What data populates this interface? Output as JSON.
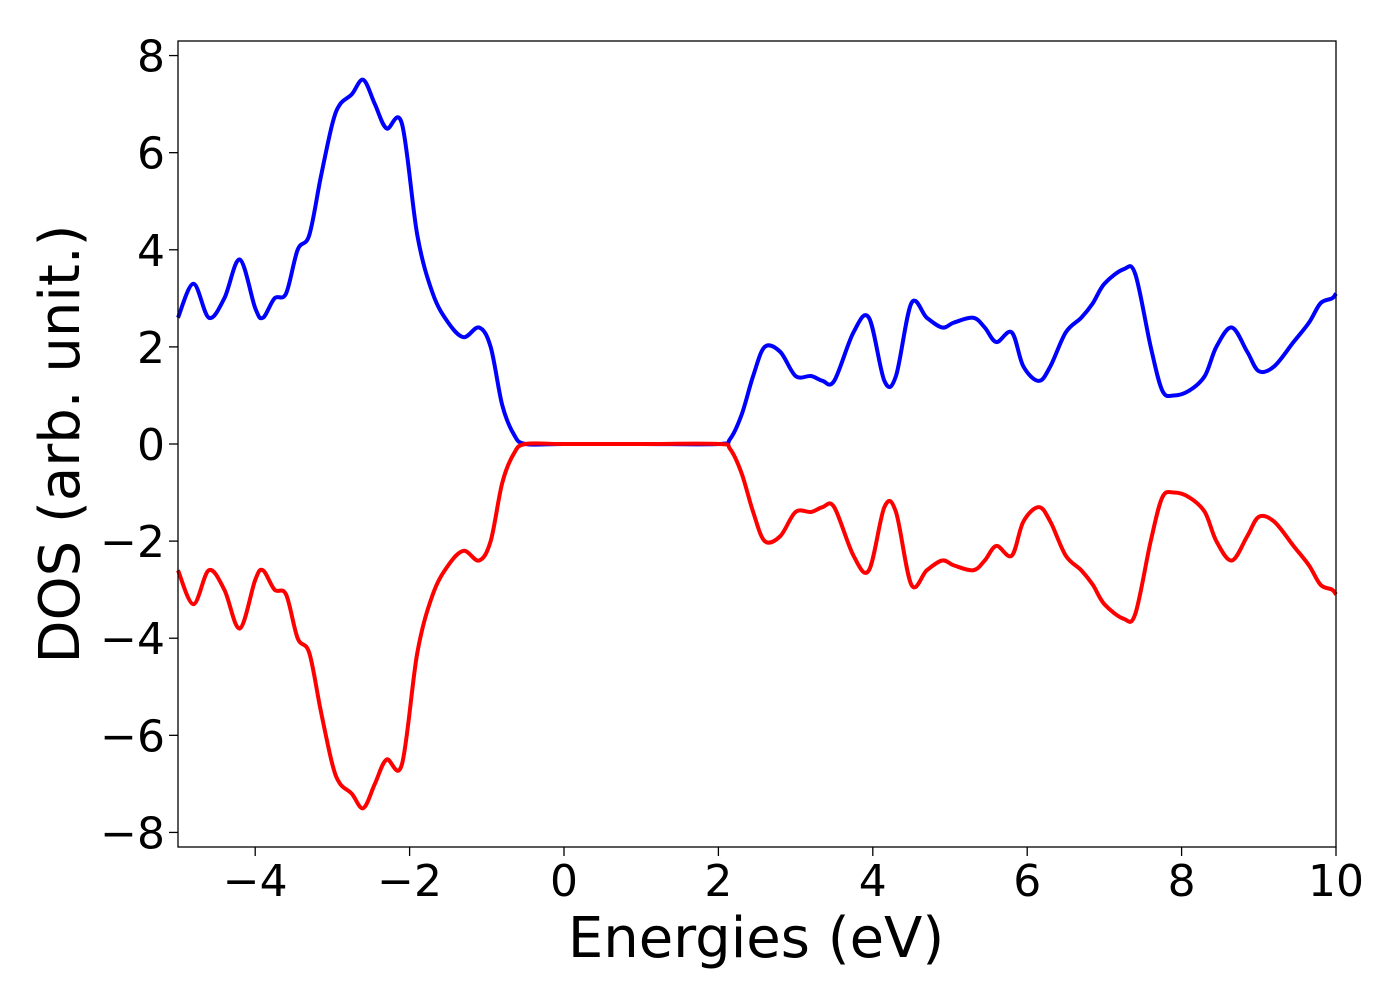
{
  "chart_data": {
    "type": "line",
    "title": "",
    "xlabel": "Energies (eV)",
    "ylabel": "DOS (arb. unit.)",
    "xlim": [
      -5,
      10
    ],
    "ylim": [
      -8.3,
      8.3
    ],
    "grid": false,
    "legend": "none",
    "x_ticks": [
      -4,
      -2,
      0,
      2,
      4,
      6,
      8,
      10
    ],
    "x_tick_labels": [
      "−4",
      "−2",
      "0",
      "2",
      "4",
      "6",
      "8",
      "10"
    ],
    "y_ticks": [
      -8,
      -6,
      -4,
      -2,
      0,
      2,
      4,
      6,
      8
    ],
    "y_tick_labels": [
      "−8",
      "−6",
      "−4",
      "−2",
      "0",
      "2",
      "4",
      "6",
      "8"
    ],
    "series": [
      {
        "color": "#0000ff",
        "x": [
          -5.0,
          -4.8,
          -4.6,
          -4.4,
          -4.2,
          -4.0,
          -3.9,
          -3.75,
          -3.6,
          -3.45,
          -3.3,
          -3.15,
          -3.0,
          -2.9,
          -2.75,
          -2.6,
          -2.45,
          -2.3,
          -2.1,
          -1.9,
          -1.7,
          -1.5,
          -1.3,
          -1.1,
          -0.95,
          -0.8,
          -0.65,
          -0.5,
          0.0,
          1.0,
          2.0,
          2.15,
          2.3,
          2.45,
          2.6,
          2.8,
          3.0,
          3.2,
          3.35,
          3.5,
          3.75,
          3.95,
          4.15,
          4.3,
          4.5,
          4.7,
          4.9,
          5.05,
          5.3,
          5.45,
          5.6,
          5.8,
          5.95,
          6.15,
          6.3,
          6.5,
          6.7,
          6.85,
          7.0,
          7.25,
          7.4,
          7.6,
          7.75,
          7.9,
          8.1,
          8.3,
          8.45,
          8.65,
          8.85,
          9.0,
          9.2,
          9.45,
          9.65,
          9.8,
          9.95,
          10.0
        ],
        "y": [
          2.6,
          3.3,
          2.6,
          3.0,
          3.8,
          2.8,
          2.6,
          3.0,
          3.1,
          4.0,
          4.3,
          5.5,
          6.6,
          7.0,
          7.2,
          7.5,
          7.0,
          6.5,
          6.6,
          4.3,
          3.1,
          2.5,
          2.2,
          2.4,
          2.0,
          0.8,
          0.2,
          0.0,
          0.0,
          0.0,
          0.0,
          0.1,
          0.6,
          1.4,
          2.0,
          1.9,
          1.4,
          1.4,
          1.3,
          1.3,
          2.3,
          2.6,
          1.3,
          1.4,
          2.9,
          2.6,
          2.4,
          2.5,
          2.6,
          2.4,
          2.1,
          2.3,
          1.6,
          1.3,
          1.6,
          2.3,
          2.6,
          2.9,
          3.3,
          3.6,
          3.5,
          2.0,
          1.1,
          1.0,
          1.1,
          1.4,
          2.0,
          2.4,
          1.9,
          1.5,
          1.6,
          2.1,
          2.5,
          2.9,
          3.0,
          3.1
        ]
      },
      {
        "color": "#ff0000",
        "x": [
          -5.0,
          -4.8,
          -4.6,
          -4.4,
          -4.2,
          -4.0,
          -3.9,
          -3.75,
          -3.6,
          -3.45,
          -3.3,
          -3.15,
          -3.0,
          -2.9,
          -2.75,
          -2.6,
          -2.45,
          -2.3,
          -2.1,
          -1.9,
          -1.7,
          -1.5,
          -1.3,
          -1.1,
          -0.95,
          -0.8,
          -0.65,
          -0.5,
          0.0,
          1.0,
          2.0,
          2.15,
          2.3,
          2.45,
          2.6,
          2.8,
          3.0,
          3.2,
          3.35,
          3.5,
          3.75,
          3.95,
          4.15,
          4.3,
          4.5,
          4.7,
          4.9,
          5.05,
          5.3,
          5.45,
          5.6,
          5.8,
          5.95,
          6.15,
          6.3,
          6.5,
          6.7,
          6.85,
          7.0,
          7.25,
          7.4,
          7.6,
          7.75,
          7.9,
          8.1,
          8.3,
          8.45,
          8.65,
          8.85,
          9.0,
          9.2,
          9.45,
          9.65,
          9.8,
          9.95,
          10.0
        ],
        "y": [
          -2.6,
          -3.3,
          -2.6,
          -3.0,
          -3.8,
          -2.8,
          -2.6,
          -3.0,
          -3.1,
          -4.0,
          -4.3,
          -5.5,
          -6.6,
          -7.0,
          -7.2,
          -7.5,
          -7.0,
          -6.5,
          -6.6,
          -4.3,
          -3.1,
          -2.5,
          -2.2,
          -2.4,
          -2.0,
          -0.8,
          -0.2,
          0.0,
          0.0,
          0.0,
          0.0,
          -0.1,
          -0.6,
          -1.4,
          -2.0,
          -1.9,
          -1.4,
          -1.4,
          -1.3,
          -1.3,
          -2.3,
          -2.6,
          -1.3,
          -1.4,
          -2.9,
          -2.6,
          -2.4,
          -2.5,
          -2.6,
          -2.4,
          -2.1,
          -2.3,
          -1.6,
          -1.3,
          -1.6,
          -2.3,
          -2.6,
          -2.9,
          -3.3,
          -3.6,
          -3.5,
          -2.0,
          -1.1,
          -1.0,
          -1.1,
          -1.4,
          -2.0,
          -2.4,
          -1.9,
          -1.5,
          -1.6,
          -2.1,
          -2.5,
          -2.9,
          -3.0,
          -3.1
        ]
      }
    ]
  }
}
